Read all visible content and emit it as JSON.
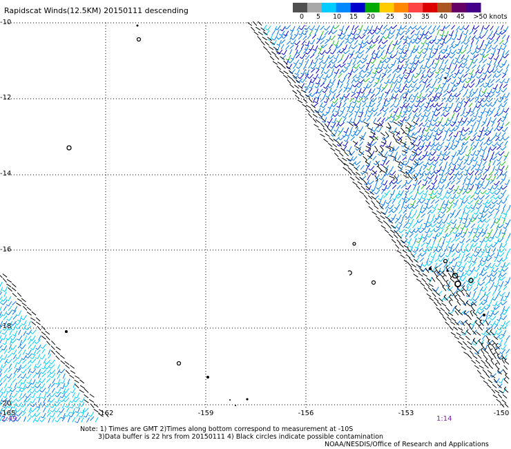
{
  "title": "Rapidscat Winds(12.5KM) 20150111 descending",
  "legend": {
    "colors": [
      "#505050",
      "#a8a8a8",
      "#00ccff",
      "#0088ff",
      "#0000cc",
      "#00aa00",
      "#ffcc00",
      "#ff8800",
      "#ff4444",
      "#dd0000",
      "#aa5522",
      "#660066",
      "#440088"
    ],
    "labels": [
      "0",
      "5",
      "10",
      "15",
      "20",
      "25",
      "30",
      "35",
      "40",
      "45",
      ">50 knots"
    ]
  },
  "axes": {
    "lat_labels": [
      "-10",
      "-12",
      "-14",
      "-16",
      "-18",
      "-20"
    ],
    "lon_labels": [
      "-165",
      "-162",
      "-159",
      "-156",
      "-153",
      "-150"
    ]
  },
  "times": {
    "left": "2:49",
    "right": "1:14"
  },
  "notes": {
    "line1": "Note: 1) Times are GMT 2)Times along bottom correspond to measurement at -10S",
    "line2": "3)Data buffer is 22 hrs from 20150111 4) Black circles indicate possible contamination",
    "line3": "NOAA/NESDIS/Office of Research and Applications"
  },
  "wind_colors": {
    "calm": "#000000",
    "light": "#00ccff",
    "moderate": "#0077ee",
    "strong": "#0000cc",
    "fresh": "#22bb22",
    "gale": "#ffcc00"
  }
}
